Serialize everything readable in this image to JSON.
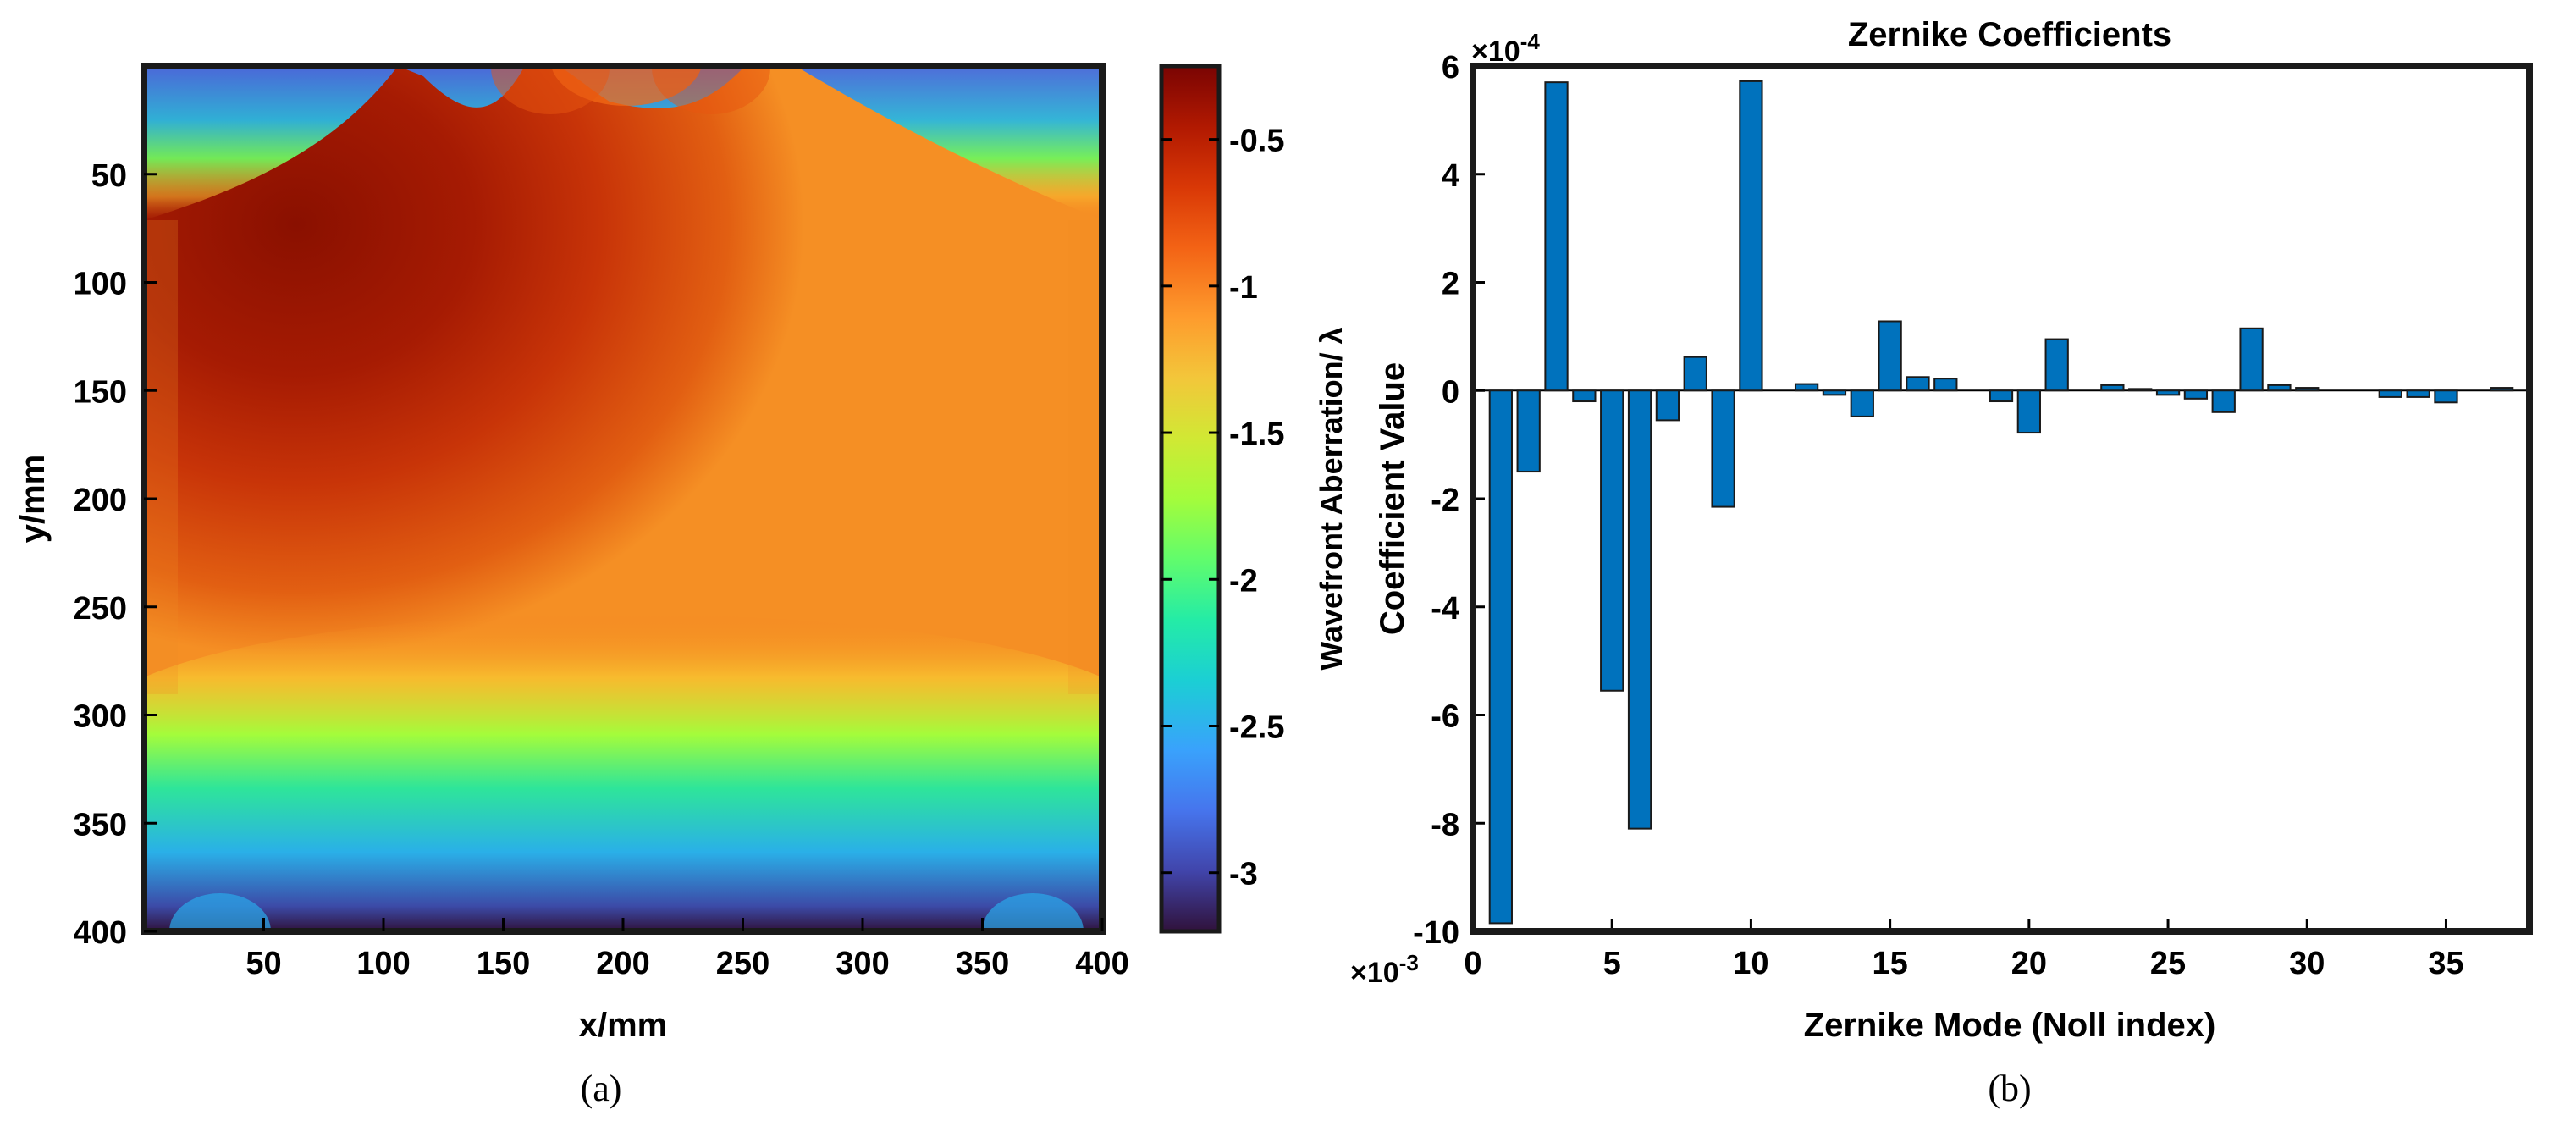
{
  "chart_data": [
    {
      "type": "heatmap",
      "panel_label": "(a)",
      "title": "",
      "xlabel": "x/mm",
      "ylabel": "y/mm",
      "xlim": [
        0,
        400
      ],
      "ylim": [
        0,
        400
      ],
      "y_reversed": true,
      "xticks": [
        50,
        100,
        150,
        200,
        250,
        300,
        350,
        400
      ],
      "yticks": [
        50,
        100,
        150,
        200,
        250,
        300,
        350,
        400
      ],
      "colormap": "turbo",
      "colorbar": {
        "label": "Wavefront Aberration/ λ",
        "range": [
          -3.2,
          -0.25
        ],
        "ticks": [
          -3,
          -2.5,
          -2,
          -1.5,
          -1,
          -0.5
        ],
        "tick_labels": [
          "-3",
          "-2.5",
          "-2",
          "-1.5",
          "-1",
          "-0.5"
        ],
        "exponent_label": "×10",
        "exponent_power": "-3"
      }
    },
    {
      "type": "bar",
      "panel_label": "(b)",
      "title": "Zernike Coefficients",
      "xlabel": "Zernike Mode (Noll index)",
      "ylabel": "Coefficient Value",
      "xlim": [
        0,
        38
      ],
      "ylim": [
        -10,
        6
      ],
      "xticks": [
        0,
        5,
        10,
        15,
        20,
        25,
        30,
        35
      ],
      "yticks": [
        -10,
        -8,
        -6,
        -4,
        -2,
        0,
        2,
        4,
        6
      ],
      "exponent_label": "×10",
      "exponent_power": "-4",
      "bar_color": "#0072BD",
      "x": [
        1,
        2,
        3,
        4,
        5,
        6,
        7,
        8,
        9,
        10,
        11,
        12,
        13,
        14,
        15,
        16,
        17,
        18,
        19,
        20,
        21,
        22,
        23,
        24,
        25,
        26,
        27,
        28,
        29,
        30,
        31,
        32,
        33,
        34,
        35,
        36,
        37
      ],
      "values": [
        -9.85,
        -1.5,
        5.7,
        -0.2,
        -5.55,
        -8.1,
        -0.55,
        0.62,
        -2.15,
        5.72,
        0,
        0.12,
        -0.08,
        -0.48,
        1.28,
        0.25,
        0.22,
        0,
        -0.2,
        -0.78,
        0.95,
        0,
        0.1,
        0.03,
        -0.08,
        -0.15,
        -0.4,
        1.15,
        0.1,
        0.05,
        0,
        0,
        -0.12,
        -0.12,
        -0.22,
        0,
        0.05
      ]
    }
  ]
}
